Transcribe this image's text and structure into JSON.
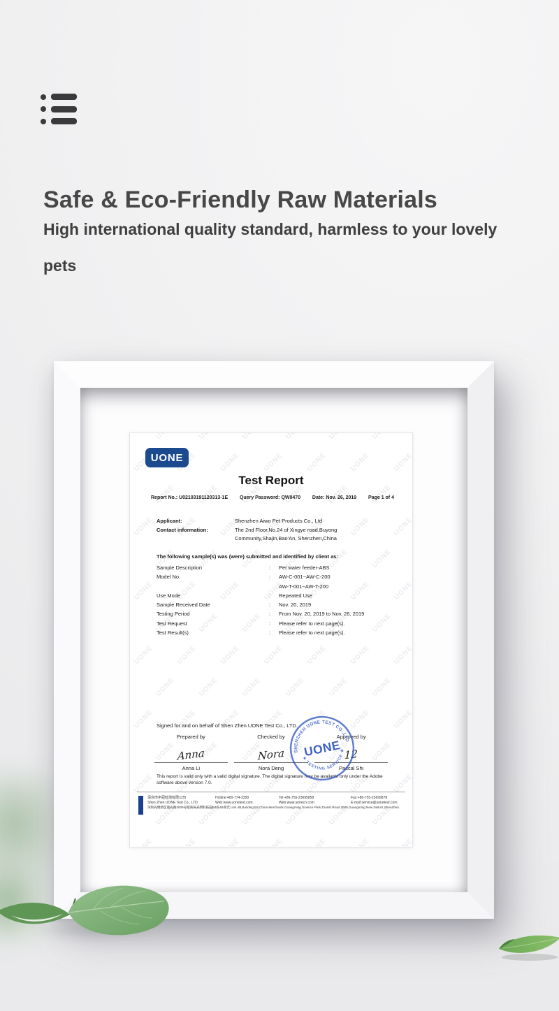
{
  "header": {
    "heading": "Safe & Eco-Friendly Raw Materials",
    "subheading": "High international quality standard, harmless to your lovely pets",
    "menu_icon": "list-menu"
  },
  "colors": {
    "logo_blue": "#1b4a8f",
    "stamp_blue": "#2d53c0",
    "heading_gray": "#474747",
    "leaf_green": "#6ea567"
  },
  "certificate": {
    "watermark": "UONE",
    "logo": "UONE",
    "title": "Test Report",
    "meta": [
      "Report No.: U02103191120313-1E",
      "Query Password: QW0470",
      "Date: Nov. 26, 2019",
      "Page 1 of 4"
    ],
    "info_rows": [
      {
        "label": "Applicant:",
        "value": "Shenzhen Aiwo Pet Products Co., Ltd"
      },
      {
        "label": "Contact information:",
        "value": "The 2nd Floor,No.24 of Xingye road,Buyong Community,Shajin,Bao'An, Shenzhen,China"
      }
    ],
    "samples_intro": "The following sample(s) was (were) submitted and identified by client as:",
    "sample_rows": [
      {
        "label": "Sample Description",
        "colon": ":",
        "value": "Pet water feeder-ABS"
      },
      {
        "label": "Model No.",
        "colon": ":",
        "value": "AW-C-001~AW-C-200"
      },
      {
        "label": "",
        "colon": "",
        "value": "AW-T-001~AW-T-200"
      },
      {
        "label": "Use Mode",
        "colon": ":",
        "value": "Repeated Use"
      },
      {
        "label": "Sample Received Date",
        "colon": ":",
        "value": "Nov. 20, 2019"
      },
      {
        "label": "Testing Period",
        "colon": ":",
        "value": "From Nov. 20, 2019 to Nov. 26, 2019"
      },
      {
        "label": "Test Request",
        "colon": ":",
        "value": "Please refer to next page(s)."
      },
      {
        "label": "Test Result(s)",
        "colon": ":",
        "value": "Please refer to next page(s)."
      }
    ],
    "signed_line": "Signed for and on behalf of Shen Zhen UONE Test Co., LTD.",
    "signatures": [
      {
        "label": "Prepared by",
        "script": "Anna",
        "name": "Anna Li"
      },
      {
        "label": "Checked by",
        "script": "Nora",
        "name": "Nora Deng"
      },
      {
        "label": "Approved by",
        "script": "12",
        "name": "Pascal Shi"
      }
    ],
    "stamp": {
      "ring_top": "SHENZHEN UONE TEST CO.,LTD",
      "ring_bottom": "★ TESTING SERVICE ★",
      "center": "UONE"
    },
    "disclaimer": "This report is valid only with a valid digital signature. The digital signature may be available only under the Adobe software above version 7.0.",
    "footer": {
      "line1": [
        "深圳市宇冠检测有限公司",
        "Hotline:400-774-3358",
        "Tel:+86-755-23695858",
        "Fax:+86-755-23699878"
      ],
      "line2": [
        "Shen Zhen UONE Test Co., LTD",
        "Web:www.uonetest.com",
        "Web:www.uonecn.com",
        "E-mail:service@uonetest.com"
      ],
      "line3": "深圳光明新区观光路3009号招商局光明科技园B4栋4B单元 Unit 4B,Building B4,China Merchants Guangming Science Park,Tourist Road 3009,Guangming New District,ShenZhen."
    }
  }
}
